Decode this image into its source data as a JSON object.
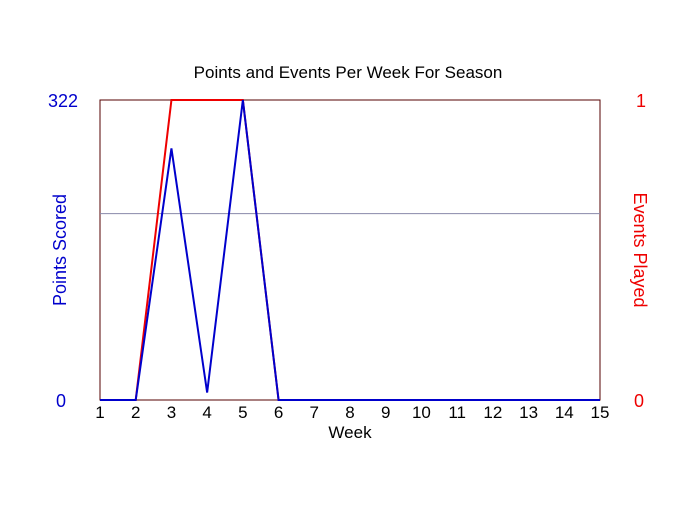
{
  "chart_data": {
    "type": "line",
    "title": "Points and Events Per Week For Season",
    "xlabel": "Week",
    "ylabel_left": "Points Scored",
    "ylabel_right": "Events Played",
    "x": [
      1,
      2,
      3,
      4,
      5,
      6,
      7,
      8,
      9,
      10,
      11,
      12,
      13,
      14,
      15
    ],
    "xlim": [
      1,
      15
    ],
    "ylim_left": [
      0,
      322
    ],
    "ylim_right": [
      0,
      1
    ],
    "yticks_left": [
      "0",
      "322"
    ],
    "yticks_right": [
      "0",
      "1"
    ],
    "reference_line_left": 200,
    "series": [
      {
        "axis": "left",
        "color": "#0000cc",
        "values": [
          0,
          0,
          270,
          8,
          322,
          0,
          0,
          0,
          0,
          0,
          0,
          0,
          0,
          0,
          0
        ]
      },
      {
        "axis": "right",
        "color": "#ee0000",
        "values": [
          0,
          0,
          1,
          1,
          1,
          0,
          0,
          0,
          0,
          0,
          0,
          0,
          0,
          0,
          0
        ]
      }
    ],
    "colors": {
      "left_axis": "#0000cc",
      "right_axis": "#ee0000",
      "frame": "#550000",
      "reference_line": "#8888aa"
    }
  }
}
